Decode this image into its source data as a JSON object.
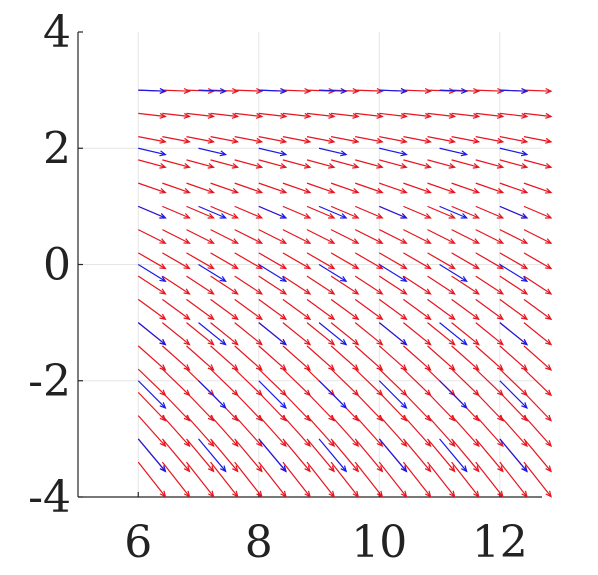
{
  "chart_data": {
    "type": "quiver",
    "title": "",
    "xlabel": "",
    "ylabel": "",
    "xlim": [
      5,
      12.7
    ],
    "ylim": [
      -4,
      4
    ],
    "xticks": [
      6,
      8,
      10,
      12
    ],
    "yticks": [
      4,
      2,
      0,
      -2,
      -4
    ],
    "xtick_labels": [
      "6",
      "8",
      "10",
      "12"
    ],
    "ytick_labels": [
      "4",
      "2",
      "0",
      "-2",
      "-4"
    ],
    "grid": true,
    "series": [
      {
        "color": "#e8141e",
        "grid_x": {
          "start": 6,
          "stop": 12.6,
          "step": 0.4
        },
        "grid_y": {
          "start": 3.0,
          "stop": -3.4,
          "step": -0.4
        },
        "vector_field": {
          "u": 0.45,
          "v_per_unit_y": -0.09
        }
      },
      {
        "color": "#1a1ae6",
        "grid_x": {
          "start": 6,
          "stop": 12.6,
          "step": 1.0
        },
        "grid_y": {
          "start": 3.0,
          "stop": -3.4,
          "step": -1.0
        },
        "vector_field": {
          "u": 0.45,
          "v_per_unit_y": -0.09
        }
      }
    ]
  }
}
